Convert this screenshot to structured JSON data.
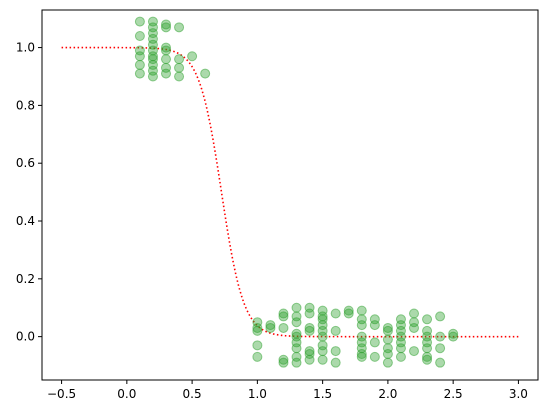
{
  "chart_data": {
    "type": "scatter",
    "title": "",
    "xlabel": "",
    "ylabel": "",
    "xlim": [
      -0.65,
      3.15
    ],
    "ylim": [
      -0.15,
      1.13
    ],
    "x_ticks": [
      -0.5,
      0.0,
      0.5,
      1.0,
      1.5,
      2.0,
      2.5,
      3.0
    ],
    "x_tick_labels": [
      "−0.5",
      "0.0",
      "0.5",
      "1.0",
      "1.5",
      "2.0",
      "2.5",
      "3.0"
    ],
    "y_ticks": [
      0.0,
      0.2,
      0.4,
      0.6,
      0.8,
      1.0
    ],
    "y_tick_labels": [
      "0.0",
      "0.2",
      "0.4",
      "0.6",
      "0.8",
      "1.0"
    ],
    "grid": false,
    "colors": {
      "points": "#2ca02c",
      "curve": "#ff0000"
    },
    "series": [
      {
        "kind": "scatter",
        "points": [
          [
            0.1,
            1.09
          ],
          [
            0.1,
            1.04
          ],
          [
            0.1,
            0.99
          ],
          [
            0.1,
            0.97
          ],
          [
            0.1,
            0.94
          ],
          [
            0.1,
            0.91
          ],
          [
            0.2,
            1.09
          ],
          [
            0.2,
            1.07
          ],
          [
            0.2,
            1.05
          ],
          [
            0.2,
            1.03
          ],
          [
            0.2,
            1.01
          ],
          [
            0.2,
            0.99
          ],
          [
            0.2,
            0.97
          ],
          [
            0.2,
            0.96
          ],
          [
            0.2,
            0.94
          ],
          [
            0.2,
            0.92
          ],
          [
            0.2,
            0.9
          ],
          [
            0.3,
            1.08
          ],
          [
            0.3,
            1.07
          ],
          [
            0.3,
            1.0
          ],
          [
            0.3,
            0.99
          ],
          [
            0.3,
            0.96
          ],
          [
            0.3,
            0.93
          ],
          [
            0.3,
            0.91
          ],
          [
            0.4,
            1.07
          ],
          [
            0.4,
            0.96
          ],
          [
            0.4,
            0.93
          ],
          [
            0.4,
            0.9
          ],
          [
            0.5,
            0.97
          ],
          [
            0.6,
            0.91
          ],
          [
            1.0,
            0.05
          ],
          [
            1.0,
            0.03
          ],
          [
            1.0,
            0.02
          ],
          [
            1.0,
            -0.03
          ],
          [
            1.0,
            -0.07
          ],
          [
            1.1,
            0.04
          ],
          [
            1.1,
            0.03
          ],
          [
            1.2,
            0.08
          ],
          [
            1.2,
            0.07
          ],
          [
            1.2,
            0.03
          ],
          [
            1.2,
            -0.08
          ],
          [
            1.2,
            -0.09
          ],
          [
            1.3,
            0.1
          ],
          [
            1.3,
            0.07
          ],
          [
            1.3,
            0.05
          ],
          [
            1.3,
            0.01
          ],
          [
            1.3,
            0.0
          ],
          [
            1.3,
            -0.02
          ],
          [
            1.3,
            -0.04
          ],
          [
            1.3,
            -0.07
          ],
          [
            1.3,
            -0.09
          ],
          [
            1.4,
            0.1
          ],
          [
            1.4,
            0.08
          ],
          [
            1.4,
            0.03
          ],
          [
            1.4,
            0.02
          ],
          [
            1.4,
            -0.05
          ],
          [
            1.4,
            -0.06
          ],
          [
            1.4,
            -0.08
          ],
          [
            1.5,
            0.09
          ],
          [
            1.5,
            0.07
          ],
          [
            1.5,
            0.06
          ],
          [
            1.5,
            0.04
          ],
          [
            1.5,
            0.02
          ],
          [
            1.5,
            0.0
          ],
          [
            1.5,
            -0.03
          ],
          [
            1.5,
            -0.05
          ],
          [
            1.5,
            -0.08
          ],
          [
            1.6,
            0.08
          ],
          [
            1.6,
            0.02
          ],
          [
            1.6,
            -0.05
          ],
          [
            1.6,
            -0.09
          ],
          [
            1.7,
            0.09
          ],
          [
            1.7,
            0.08
          ],
          [
            1.8,
            0.09
          ],
          [
            1.8,
            0.06
          ],
          [
            1.8,
            0.04
          ],
          [
            1.8,
            0.0
          ],
          [
            1.8,
            -0.02
          ],
          [
            1.8,
            -0.04
          ],
          [
            1.8,
            -0.06
          ],
          [
            1.8,
            -0.07
          ],
          [
            1.9,
            0.06
          ],
          [
            1.9,
            0.04
          ],
          [
            1.9,
            -0.02
          ],
          [
            1.9,
            -0.07
          ],
          [
            2.0,
            0.03
          ],
          [
            2.0,
            0.02
          ],
          [
            2.0,
            -0.01
          ],
          [
            2.0,
            -0.04
          ],
          [
            2.0,
            -0.06
          ],
          [
            2.0,
            -0.09
          ],
          [
            2.1,
            0.06
          ],
          [
            2.1,
            0.04
          ],
          [
            2.1,
            0.02
          ],
          [
            2.1,
            0.0
          ],
          [
            2.1,
            -0.02
          ],
          [
            2.1,
            -0.04
          ],
          [
            2.1,
            -0.07
          ],
          [
            2.2,
            0.08
          ],
          [
            2.2,
            0.05
          ],
          [
            2.2,
            0.03
          ],
          [
            2.2,
            -0.05
          ],
          [
            2.3,
            0.06
          ],
          [
            2.3,
            0.02
          ],
          [
            2.3,
            0.0
          ],
          [
            2.3,
            -0.02
          ],
          [
            2.3,
            -0.04
          ],
          [
            2.3,
            -0.07
          ],
          [
            2.3,
            -0.08
          ],
          [
            2.4,
            0.07
          ],
          [
            2.4,
            0.0
          ],
          [
            2.4,
            -0.04
          ],
          [
            2.4,
            -0.09
          ],
          [
            2.5,
            0.01
          ],
          [
            2.5,
            0.0
          ]
        ]
      },
      {
        "kind": "line",
        "style": "dotted",
        "function": "logistic",
        "params": {
          "midpoint": 0.725,
          "scale": 0.085
        },
        "x_range": [
          -0.5,
          3.0
        ]
      }
    ]
  }
}
